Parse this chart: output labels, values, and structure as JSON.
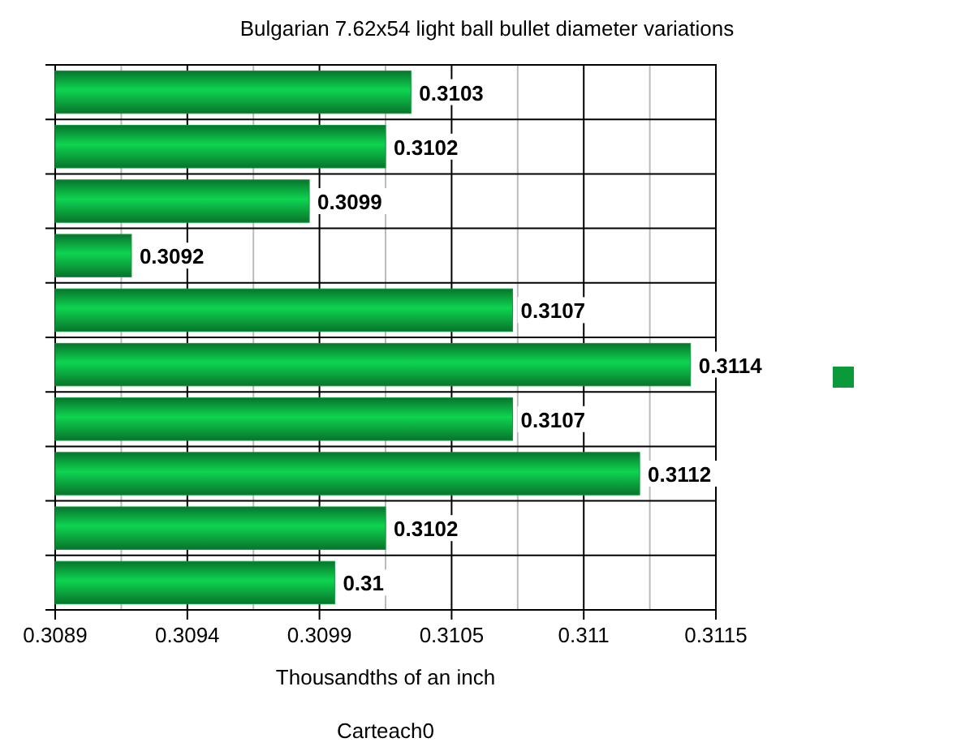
{
  "chart_data": {
    "type": "bar",
    "orientation": "horizontal",
    "title": "Bulgarian 7.62x54 light ball bullet diameter variations",
    "xlabel": "Thousandths of an inch",
    "annotations": [
      "Carteach0"
    ],
    "categories": [
      null,
      null,
      null,
      null,
      null,
      null,
      null,
      null,
      null,
      null
    ],
    "series": [
      {
        "color": "#0a9a3a",
        "values": [
          0.3103,
          0.3102,
          0.3099,
          0.3092,
          0.3107,
          0.3114,
          0.3107,
          0.3112,
          0.3102,
          0.31
        ]
      }
    ],
    "data_labels": true,
    "xlim": [
      0.3089,
      0.3115
    ],
    "xticks": [
      0.3089,
      {
        "value": 0.30916,
        "label": null
      },
      {
        "value": 0.30942,
        "label": "0.3094"
      },
      {
        "value": 0.30968,
        "label": null
      },
      {
        "value": 0.30994,
        "label": "0.3099"
      },
      {
        "value": 0.3102,
        "label": null
      },
      {
        "value": 0.31046,
        "label": "0.3105"
      },
      {
        "value": 0.31072,
        "label": null
      },
      {
        "value": 0.31098,
        "label": "0.311"
      },
      {
        "value": 0.31124,
        "label": null
      },
      0.3115
    ],
    "grid": true
  }
}
